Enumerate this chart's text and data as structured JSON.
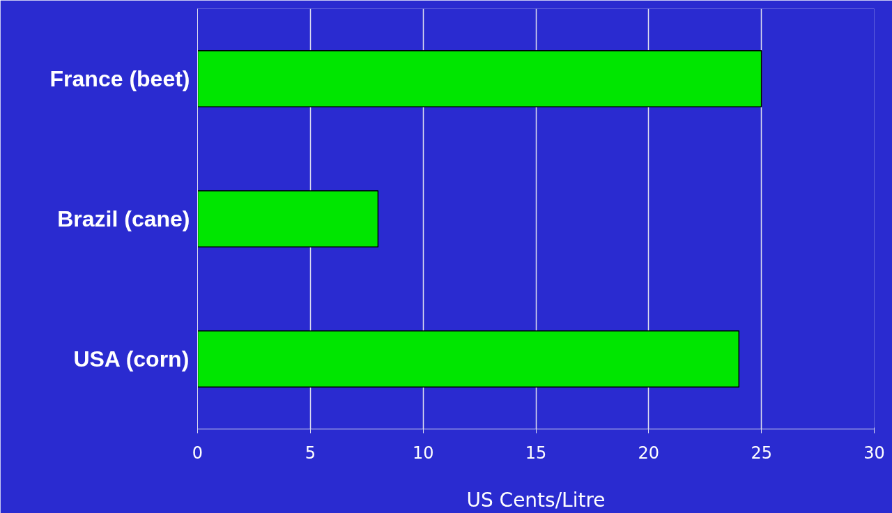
{
  "chart_data": {
    "type": "bar",
    "orientation": "horizontal",
    "categories": [
      "France (beet)",
      "Brazil (cane)",
      "USA (corn)"
    ],
    "values": [
      25,
      8,
      24
    ],
    "color": "#00e600",
    "xlim": [
      0,
      30
    ],
    "xticks": [
      0,
      5,
      10,
      15,
      20,
      25,
      30
    ],
    "xlabel": "US Cents/Litre",
    "grid": "x"
  }
}
